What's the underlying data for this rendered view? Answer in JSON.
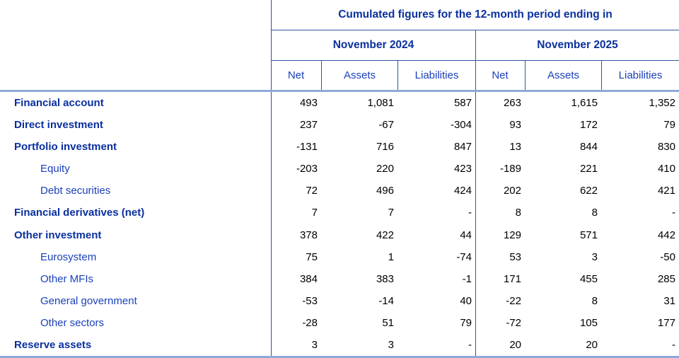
{
  "table": {
    "title": "Cumulated figures for the 12-month period ending in",
    "column_groups": [
      {
        "label": "November 2024"
      },
      {
        "label": "November 2025"
      }
    ],
    "columns": [
      "Net",
      "Assets",
      "Liabilities",
      "Net",
      "Assets",
      "Liabilities"
    ],
    "rows": [
      {
        "label": "Financial account",
        "style": "bold",
        "values": [
          "493",
          "1,081",
          "587",
          "263",
          "1,615",
          "1,352"
        ]
      },
      {
        "label": "Direct investment",
        "style": "bold",
        "values": [
          "237",
          "-67",
          "-304",
          "93",
          "172",
          "79"
        ]
      },
      {
        "label": "Portfolio investment",
        "style": "bold",
        "values": [
          "-131",
          "716",
          "847",
          "13",
          "844",
          "830"
        ]
      },
      {
        "label": "Equity",
        "style": "sub",
        "values": [
          "-203",
          "220",
          "423",
          "-189",
          "221",
          "410"
        ]
      },
      {
        "label": "Debt securities",
        "style": "sub",
        "values": [
          "72",
          "496",
          "424",
          "202",
          "622",
          "421"
        ]
      },
      {
        "label": "Financial derivatives (net)",
        "style": "bold",
        "values": [
          "7",
          "7",
          "-",
          "8",
          "8",
          "-"
        ]
      },
      {
        "label": "Other investment",
        "style": "bold",
        "values": [
          "378",
          "422",
          "44",
          "129",
          "571",
          "442"
        ]
      },
      {
        "label": "Eurosystem",
        "style": "sub",
        "values": [
          "75",
          "1",
          "-74",
          "53",
          "3",
          "-50"
        ]
      },
      {
        "label": "Other MFIs",
        "style": "sub",
        "values": [
          "384",
          "383",
          "-1",
          "171",
          "455",
          "285"
        ]
      },
      {
        "label": "General government",
        "style": "sub",
        "values": [
          "-53",
          "-14",
          "40",
          "-22",
          "8",
          "31"
        ]
      },
      {
        "label": "Other sectors",
        "style": "sub",
        "values": [
          "-28",
          "51",
          "79",
          "-72",
          "105",
          "177"
        ]
      },
      {
        "label": "Reserve assets",
        "style": "bold",
        "values": [
          "3",
          "3",
          "-",
          "20",
          "20",
          "-"
        ]
      }
    ]
  },
  "colors": {
    "background": "#ffffff",
    "header_blue": "#0a309e",
    "label_blue": "#1c40ba",
    "number_black": "#000000",
    "thin_border": "#33549f",
    "thick_border": "#8fa9d8"
  },
  "chart_data": {
    "type": "table",
    "title": "Cumulated figures for the 12-month period ending in",
    "column_groups": [
      "November 2024",
      "November 2025"
    ],
    "columns": [
      "Net",
      "Assets",
      "Liabilities",
      "Net",
      "Assets",
      "Liabilities"
    ],
    "rows": [
      {
        "label": "Financial account",
        "indent": 0,
        "values": [
          493,
          1081,
          587,
          263,
          1615,
          1352
        ]
      },
      {
        "label": "Direct investment",
        "indent": 0,
        "values": [
          237,
          -67,
          -304,
          93,
          172,
          79
        ]
      },
      {
        "label": "Portfolio investment",
        "indent": 0,
        "values": [
          -131,
          716,
          847,
          13,
          844,
          830
        ]
      },
      {
        "label": "Equity",
        "indent": 1,
        "values": [
          -203,
          220,
          423,
          -189,
          221,
          410
        ]
      },
      {
        "label": "Debt securities",
        "indent": 1,
        "values": [
          72,
          496,
          424,
          202,
          622,
          421
        ]
      },
      {
        "label": "Financial derivatives (net)",
        "indent": 0,
        "values": [
          7,
          7,
          null,
          8,
          8,
          null
        ]
      },
      {
        "label": "Other investment",
        "indent": 0,
        "values": [
          378,
          422,
          44,
          129,
          571,
          442
        ]
      },
      {
        "label": "Eurosystem",
        "indent": 1,
        "values": [
          75,
          1,
          -74,
          53,
          3,
          -50
        ]
      },
      {
        "label": "Other MFIs",
        "indent": 1,
        "values": [
          384,
          383,
          -1,
          171,
          455,
          285
        ]
      },
      {
        "label": "General government",
        "indent": 1,
        "values": [
          -53,
          -14,
          40,
          -22,
          8,
          31
        ]
      },
      {
        "label": "Other sectors",
        "indent": 1,
        "values": [
          -28,
          51,
          79,
          -72,
          105,
          177
        ]
      },
      {
        "label": "Reserve assets",
        "indent": 0,
        "values": [
          3,
          3,
          null,
          20,
          20,
          null
        ]
      }
    ]
  }
}
